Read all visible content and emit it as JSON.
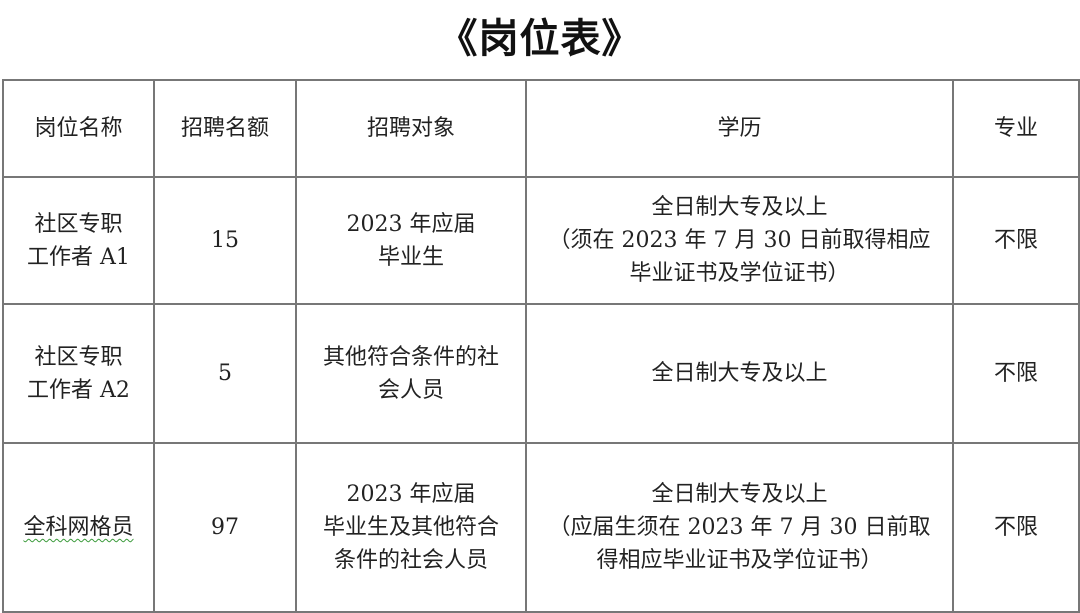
{
  "title": "《岗位表》",
  "table": {
    "headers": [
      "岗位名称",
      "招聘名额",
      "招聘对象",
      "学历",
      "专业"
    ],
    "rows": [
      {
        "position": [
          "社区专职",
          "工作者 A1"
        ],
        "quota": "15",
        "target": [
          "2023 年应届",
          "毕业生"
        ],
        "education": [
          "全日制大专及以上",
          "（须在 2023 年 7 月 30 日前取得相应",
          "毕业证书及学位证书）"
        ],
        "major": "不限"
      },
      {
        "position": [
          "社区专职",
          "工作者 A2"
        ],
        "quota": "5",
        "target": [
          "其他符合条件的社",
          "会人员"
        ],
        "education": [
          "全日制大专及以上"
        ],
        "major": "不限"
      },
      {
        "position": [
          "全科网格员"
        ],
        "quota": "97",
        "target": [
          "2023 年应届",
          "毕业生及其他符合",
          "条件的社会人员"
        ],
        "education": [
          "全日制大专及以上",
          "（应届生须在 2023 年 7 月 30 日前取",
          "得相应毕业证书及学位证书）"
        ],
        "major": "不限"
      }
    ]
  }
}
